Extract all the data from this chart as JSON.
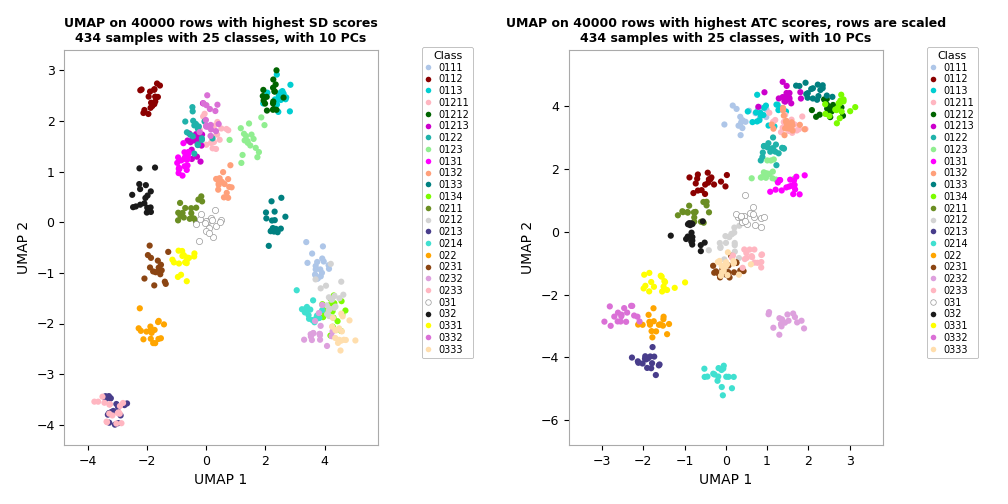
{
  "title1": "UMAP on 40000 rows with highest SD scores\n434 samples with 25 classes, with 10 PCs",
  "title2": "UMAP on 40000 rows with highest ATC scores, rows are scaled\n434 samples with 25 classes, with 10 PCs",
  "xlabel": "UMAP 1",
  "ylabel": "UMAP 2",
  "legend_title": "Class",
  "classes": [
    "0111",
    "0112",
    "0113",
    "01211",
    "01212",
    "01213",
    "0122",
    "0123",
    "0131",
    "0132",
    "0133",
    "0134",
    "0211",
    "0212",
    "0213",
    "0214",
    "022",
    "0231",
    "0232",
    "0233",
    "031",
    "032",
    "0331",
    "0332",
    "0333"
  ],
  "colors": [
    "#AEC6E8",
    "#8B0000",
    "#00CED1",
    "#FFB6C1",
    "#006400",
    "#CC00CC",
    "#20B2AA",
    "#90EE90",
    "#FF00FF",
    "#FFA07A",
    "#008080",
    "#7CFC00",
    "#6B8E23",
    "#D3D3D3",
    "#483D8B",
    "#40E0D0",
    "#FFA500",
    "#8B4513",
    "#DDA0DD",
    "#FFB6C1",
    "#FFFFFF",
    "#1a1a1a",
    "#FFFF00",
    "#DA70D6",
    "#FFDEAD"
  ],
  "xlim1": [
    -4.8,
    5.8
  ],
  "ylim1": [
    -4.4,
    3.4
  ],
  "xticks1": [
    -4,
    -2,
    0,
    2,
    4
  ],
  "yticks1": [
    -4,
    -3,
    -2,
    -1,
    0,
    1,
    2,
    3
  ],
  "xlim2": [
    -3.8,
    3.8
  ],
  "ylim2": [
    -6.8,
    5.8
  ],
  "xticks2": [
    -3,
    -2,
    -1,
    0,
    1,
    2,
    3
  ],
  "yticks2": [
    -6,
    -4,
    -2,
    0,
    2,
    4
  ],
  "background": "#FFFFFF",
  "n_points": 434
}
